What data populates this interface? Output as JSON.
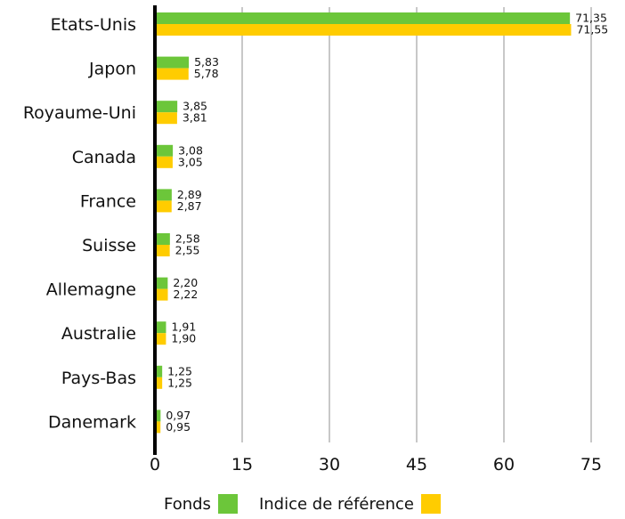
{
  "chart_data": {
    "type": "bar",
    "orientation": "horizontal",
    "categories": [
      "Etats-Unis",
      "Japon",
      "Royaume-Uni",
      "Canada",
      "France",
      "Suisse",
      "Allemagne",
      "Australie",
      "Pays-Bas",
      "Danemark"
    ],
    "series": [
      {
        "name": "Fonds",
        "color": "#6cc63a",
        "values": [
          71.35,
          5.83,
          3.85,
          3.08,
          2.89,
          2.58,
          2.2,
          1.91,
          1.25,
          0.97
        ],
        "labels": [
          "71,35",
          "5,83",
          "3,85",
          "3,08",
          "2,89",
          "2,58",
          "2,20",
          "1,91",
          "1,25",
          "0,97"
        ]
      },
      {
        "name": "Indice de référence",
        "color": "#ffcc00",
        "values": [
          71.55,
          5.78,
          3.81,
          3.05,
          2.87,
          2.55,
          2.22,
          1.9,
          1.25,
          0.95
        ],
        "labels": [
          "71,55",
          "5,78",
          "3,81",
          "3,05",
          "2,87",
          "2,55",
          "2,22",
          "1,90",
          "1,25",
          "0,95"
        ]
      }
    ],
    "xlim": [
      0,
      75
    ],
    "xticks": [
      0,
      15,
      30,
      45,
      60,
      75
    ],
    "xtick_labels": [
      "0",
      "15",
      "30",
      "45",
      "60",
      "75"
    ],
    "grid": "vertical",
    "legend_position": "bottom"
  },
  "legend": {
    "fonds_label": "Fonds",
    "index_label": "Indice de référence"
  },
  "colors": {
    "fonds": "#6cc63a",
    "index": "#ffcc00",
    "grid": "#c8c8c8",
    "axis": "#000000"
  }
}
